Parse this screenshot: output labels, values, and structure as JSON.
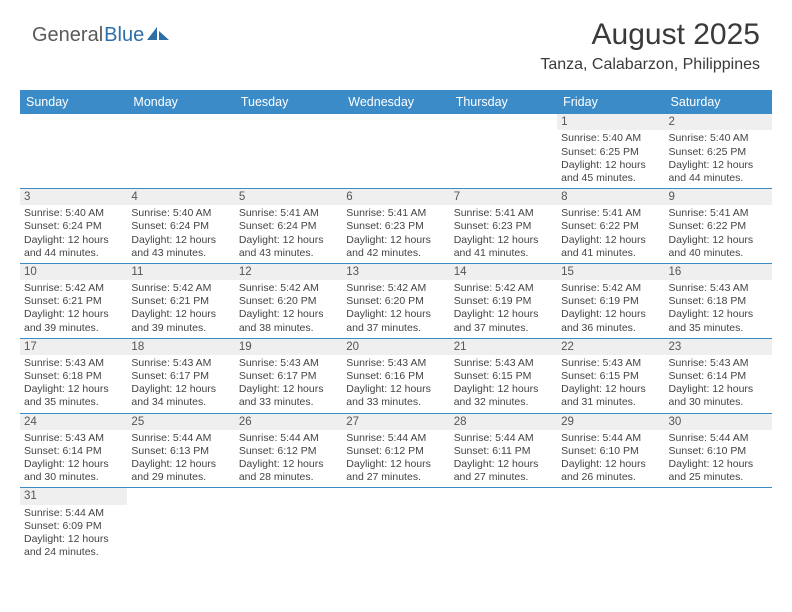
{
  "brand": {
    "part1": "General",
    "part2": "Blue"
  },
  "title": "August 2025",
  "location": "Tanza, Calabarzon, Philippines",
  "colors": {
    "header_bg": "#3b8bc8",
    "header_fg": "#ffffff",
    "daynum_bg": "#efefef",
    "row_border": "#3b8bc8",
    "text": "#444444"
  },
  "layout": {
    "columns": 7,
    "weekday_font_size": 12.5,
    "cell_font_size": 10.5
  },
  "weekdays": [
    "Sunday",
    "Monday",
    "Tuesday",
    "Wednesday",
    "Thursday",
    "Friday",
    "Saturday"
  ],
  "weeks": [
    [
      {
        "empty": true
      },
      {
        "empty": true
      },
      {
        "empty": true
      },
      {
        "empty": true
      },
      {
        "empty": true
      },
      {
        "num": "1",
        "sunrise": "Sunrise: 5:40 AM",
        "sunset": "Sunset: 6:25 PM",
        "daylight": "Daylight: 12 hours and 45 minutes."
      },
      {
        "num": "2",
        "sunrise": "Sunrise: 5:40 AM",
        "sunset": "Sunset: 6:25 PM",
        "daylight": "Daylight: 12 hours and 44 minutes."
      }
    ],
    [
      {
        "num": "3",
        "sunrise": "Sunrise: 5:40 AM",
        "sunset": "Sunset: 6:24 PM",
        "daylight": "Daylight: 12 hours and 44 minutes."
      },
      {
        "num": "4",
        "sunrise": "Sunrise: 5:40 AM",
        "sunset": "Sunset: 6:24 PM",
        "daylight": "Daylight: 12 hours and 43 minutes."
      },
      {
        "num": "5",
        "sunrise": "Sunrise: 5:41 AM",
        "sunset": "Sunset: 6:24 PM",
        "daylight": "Daylight: 12 hours and 43 minutes."
      },
      {
        "num": "6",
        "sunrise": "Sunrise: 5:41 AM",
        "sunset": "Sunset: 6:23 PM",
        "daylight": "Daylight: 12 hours and 42 minutes."
      },
      {
        "num": "7",
        "sunrise": "Sunrise: 5:41 AM",
        "sunset": "Sunset: 6:23 PM",
        "daylight": "Daylight: 12 hours and 41 minutes."
      },
      {
        "num": "8",
        "sunrise": "Sunrise: 5:41 AM",
        "sunset": "Sunset: 6:22 PM",
        "daylight": "Daylight: 12 hours and 41 minutes."
      },
      {
        "num": "9",
        "sunrise": "Sunrise: 5:41 AM",
        "sunset": "Sunset: 6:22 PM",
        "daylight": "Daylight: 12 hours and 40 minutes."
      }
    ],
    [
      {
        "num": "10",
        "sunrise": "Sunrise: 5:42 AM",
        "sunset": "Sunset: 6:21 PM",
        "daylight": "Daylight: 12 hours and 39 minutes."
      },
      {
        "num": "11",
        "sunrise": "Sunrise: 5:42 AM",
        "sunset": "Sunset: 6:21 PM",
        "daylight": "Daylight: 12 hours and 39 minutes."
      },
      {
        "num": "12",
        "sunrise": "Sunrise: 5:42 AM",
        "sunset": "Sunset: 6:20 PM",
        "daylight": "Daylight: 12 hours and 38 minutes."
      },
      {
        "num": "13",
        "sunrise": "Sunrise: 5:42 AM",
        "sunset": "Sunset: 6:20 PM",
        "daylight": "Daylight: 12 hours and 37 minutes."
      },
      {
        "num": "14",
        "sunrise": "Sunrise: 5:42 AM",
        "sunset": "Sunset: 6:19 PM",
        "daylight": "Daylight: 12 hours and 37 minutes."
      },
      {
        "num": "15",
        "sunrise": "Sunrise: 5:42 AM",
        "sunset": "Sunset: 6:19 PM",
        "daylight": "Daylight: 12 hours and 36 minutes."
      },
      {
        "num": "16",
        "sunrise": "Sunrise: 5:43 AM",
        "sunset": "Sunset: 6:18 PM",
        "daylight": "Daylight: 12 hours and 35 minutes."
      }
    ],
    [
      {
        "num": "17",
        "sunrise": "Sunrise: 5:43 AM",
        "sunset": "Sunset: 6:18 PM",
        "daylight": "Daylight: 12 hours and 35 minutes."
      },
      {
        "num": "18",
        "sunrise": "Sunrise: 5:43 AM",
        "sunset": "Sunset: 6:17 PM",
        "daylight": "Daylight: 12 hours and 34 minutes."
      },
      {
        "num": "19",
        "sunrise": "Sunrise: 5:43 AM",
        "sunset": "Sunset: 6:17 PM",
        "daylight": "Daylight: 12 hours and 33 minutes."
      },
      {
        "num": "20",
        "sunrise": "Sunrise: 5:43 AM",
        "sunset": "Sunset: 6:16 PM",
        "daylight": "Daylight: 12 hours and 33 minutes."
      },
      {
        "num": "21",
        "sunrise": "Sunrise: 5:43 AM",
        "sunset": "Sunset: 6:15 PM",
        "daylight": "Daylight: 12 hours and 32 minutes."
      },
      {
        "num": "22",
        "sunrise": "Sunrise: 5:43 AM",
        "sunset": "Sunset: 6:15 PM",
        "daylight": "Daylight: 12 hours and 31 minutes."
      },
      {
        "num": "23",
        "sunrise": "Sunrise: 5:43 AM",
        "sunset": "Sunset: 6:14 PM",
        "daylight": "Daylight: 12 hours and 30 minutes."
      }
    ],
    [
      {
        "num": "24",
        "sunrise": "Sunrise: 5:43 AM",
        "sunset": "Sunset: 6:14 PM",
        "daylight": "Daylight: 12 hours and 30 minutes."
      },
      {
        "num": "25",
        "sunrise": "Sunrise: 5:44 AM",
        "sunset": "Sunset: 6:13 PM",
        "daylight": "Daylight: 12 hours and 29 minutes."
      },
      {
        "num": "26",
        "sunrise": "Sunrise: 5:44 AM",
        "sunset": "Sunset: 6:12 PM",
        "daylight": "Daylight: 12 hours and 28 minutes."
      },
      {
        "num": "27",
        "sunrise": "Sunrise: 5:44 AM",
        "sunset": "Sunset: 6:12 PM",
        "daylight": "Daylight: 12 hours and 27 minutes."
      },
      {
        "num": "28",
        "sunrise": "Sunrise: 5:44 AM",
        "sunset": "Sunset: 6:11 PM",
        "daylight": "Daylight: 12 hours and 27 minutes."
      },
      {
        "num": "29",
        "sunrise": "Sunrise: 5:44 AM",
        "sunset": "Sunset: 6:10 PM",
        "daylight": "Daylight: 12 hours and 26 minutes."
      },
      {
        "num": "30",
        "sunrise": "Sunrise: 5:44 AM",
        "sunset": "Sunset: 6:10 PM",
        "daylight": "Daylight: 12 hours and 25 minutes."
      }
    ],
    [
      {
        "num": "31",
        "sunrise": "Sunrise: 5:44 AM",
        "sunset": "Sunset: 6:09 PM",
        "daylight": "Daylight: 12 hours and 24 minutes."
      },
      {
        "empty": true
      },
      {
        "empty": true
      },
      {
        "empty": true
      },
      {
        "empty": true
      },
      {
        "empty": true
      },
      {
        "empty": true
      }
    ]
  ]
}
